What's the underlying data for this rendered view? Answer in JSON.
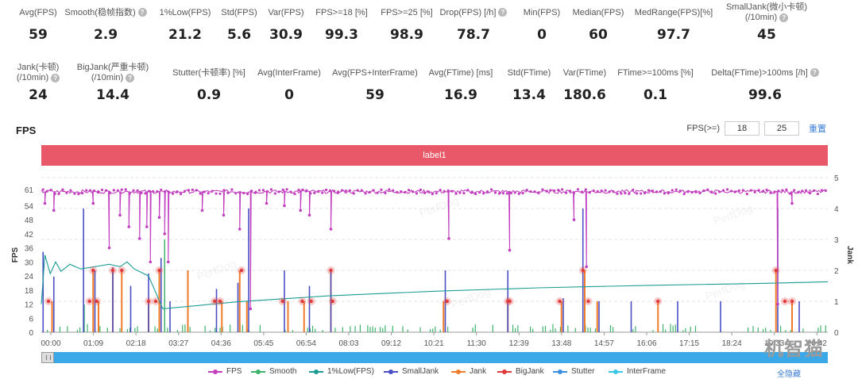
{
  "stats_row1": [
    {
      "label": "Avg(FPS)",
      "value": "59",
      "help": false
    },
    {
      "label": "Smooth(稳帧指数)",
      "value": "2.9",
      "help": true
    },
    {
      "label": "1%Low(FPS)",
      "value": "21.2",
      "help": false
    },
    {
      "label": "Std(FPS)",
      "value": "5.6",
      "help": false
    },
    {
      "label": "Var(FPS)",
      "value": "30.9",
      "help": false
    },
    {
      "label": "FPS>=18 [%]",
      "value": "99.3",
      "help": false
    },
    {
      "label": "FPS>=25 [%]",
      "value": "98.9",
      "help": false
    },
    {
      "label": "Drop(FPS) [/h]",
      "value": "78.7",
      "help": true
    },
    {
      "label": "Min(FPS)",
      "value": "0",
      "help": false
    },
    {
      "label": "Median(FPS)",
      "value": "60",
      "help": false
    },
    {
      "label": "MedRange(FPS)[%]",
      "value": "97.7",
      "help": false
    },
    {
      "label": "SmallJank(微小卡顿)",
      "label2": "(/10min)",
      "value": "45",
      "help": true
    }
  ],
  "stats_row2": [
    {
      "label": "Jank(卡顿)",
      "label2": "(/10min)",
      "value": "24",
      "help": true
    },
    {
      "label": "BigJank(严重卡顿)",
      "label2": "(/10min)",
      "value": "14.4",
      "help": true
    },
    {
      "label": "Stutter(卡顿率) [%]",
      "value": "0.9",
      "help": false
    },
    {
      "label": "Avg(InterFrame)",
      "value": "0",
      "help": false
    },
    {
      "label": "Avg(FPS+InterFrame)",
      "value": "59",
      "help": false
    },
    {
      "label": "Avg(FTime) [ms]",
      "value": "16.9",
      "help": false
    },
    {
      "label": "Std(FTime)",
      "value": "13.4",
      "help": false
    },
    {
      "label": "Var(FTime)",
      "value": "180.6",
      "help": false
    },
    {
      "label": "FTime>=100ms [%]",
      "value": "0.1",
      "help": false
    },
    {
      "label": "Delta(FTime)>100ms [/h]",
      "value": "99.6",
      "help": true
    }
  ],
  "chart_title": "FPS",
  "threshold_label": "FPS(>=)",
  "threshold_values": [
    "18",
    "25"
  ],
  "reset_label": "重置",
  "label_bar": "label1",
  "hide_all_label": "全隐藏",
  "watermark_text": "PerfDog",
  "logo_text": "机智猫",
  "colors": {
    "fps": "#c23fc0",
    "smooth": "#3fb36b",
    "low1": "#1a9c95",
    "smalljank": "#4a4fc4",
    "jank": "#f07c2a",
    "bigjank": "#e03b3b",
    "stutter": "#3c8ee0",
    "interframe": "#39c8e8",
    "label_bar": "#e85868",
    "slider": "#3ba8e8"
  },
  "chart_data": {
    "type": "line",
    "x_ticks": [
      "00:00",
      "01:09",
      "02:18",
      "03:27",
      "04:36",
      "05:45",
      "06:54",
      "08:03",
      "09:12",
      "10:21",
      "11:30",
      "12:39",
      "13:48",
      "14:57",
      "16:06",
      "17:15",
      "18:24",
      "19:33",
      "20:42"
    ],
    "y_left_label": "FPS",
    "y_left_ticks": [
      0,
      6,
      12,
      18,
      24,
      30,
      36,
      42,
      48,
      54,
      61
    ],
    "y_left_range": [
      0,
      66
    ],
    "y_right_label": "Jank",
    "y_right_ticks": [
      0,
      1,
      2,
      3,
      4,
      5
    ],
    "y_right_range": [
      0,
      5
    ],
    "duration_minutes": 22,
    "series": [
      {
        "name": "FPS",
        "key": "fps",
        "baseline": 60,
        "dips": [
          [
            0.1,
            55
          ],
          [
            0.35,
            52
          ],
          [
            1.45,
            55
          ],
          [
            1.9,
            36
          ],
          [
            2.2,
            50
          ],
          [
            2.45,
            45
          ],
          [
            2.75,
            40
          ],
          [
            2.95,
            45
          ],
          [
            3.05,
            30
          ],
          [
            3.3,
            49
          ],
          [
            3.45,
            42
          ],
          [
            3.55,
            30
          ],
          [
            4.5,
            52
          ],
          [
            5.1,
            50
          ],
          [
            5.55,
            44
          ],
          [
            5.85,
            10
          ],
          [
            6.3,
            55
          ],
          [
            6.8,
            54
          ],
          [
            7.25,
            52
          ],
          [
            7.5,
            50
          ],
          [
            8.1,
            44
          ],
          [
            11.4,
            40
          ],
          [
            13.1,
            35
          ],
          [
            14.9,
            48
          ],
          [
            15.25,
            28
          ],
          [
            20.6,
            12
          ],
          [
            21.0,
            55
          ]
        ]
      },
      {
        "name": "Smooth",
        "key": "smooth"
      },
      {
        "name": "1%Low(FPS)",
        "key": "low1",
        "points": [
          [
            0,
            12
          ],
          [
            0.1,
            33
          ],
          [
            0.25,
            25
          ],
          [
            0.4,
            30
          ],
          [
            0.55,
            26
          ],
          [
            0.8,
            29
          ],
          [
            1.1,
            27
          ],
          [
            1.5,
            28
          ],
          [
            1.9,
            29
          ],
          [
            2.2,
            28
          ],
          [
            2.4,
            30
          ],
          [
            2.6,
            27
          ],
          [
            3.0,
            24
          ],
          [
            3.4,
            10
          ],
          [
            5.5,
            13
          ],
          [
            8.0,
            15.5
          ],
          [
            11,
            17.5
          ],
          [
            14,
            19
          ],
          [
            17,
            20
          ],
          [
            20,
            20.8
          ],
          [
            22,
            21.5
          ]
        ]
      },
      {
        "name": "SmallJank",
        "key": "smalljank",
        "spikes": [
          [
            0.05,
            2.6
          ],
          [
            0.35,
            1.8
          ],
          [
            1.18,
            4.0
          ],
          [
            1.5,
            2.0
          ],
          [
            2.0,
            2.1
          ],
          [
            2.5,
            1.5
          ],
          [
            3.0,
            1.9
          ],
          [
            3.35,
            2.4
          ],
          [
            3.6,
            1.0
          ],
          [
            4.9,
            1.4
          ],
          [
            5.5,
            1.6
          ],
          [
            5.8,
            4.0
          ],
          [
            6.8,
            2.0
          ],
          [
            7.5,
            1.5
          ],
          [
            8.1,
            2.0
          ],
          [
            11.3,
            2.0
          ],
          [
            13.05,
            2.0
          ],
          [
            14.6,
            1.1
          ],
          [
            15.15,
            4.0
          ],
          [
            15.6,
            1.0
          ],
          [
            16.5,
            1.0
          ],
          [
            17.8,
            1.0
          ],
          [
            19.0,
            1.0
          ],
          [
            20.6,
            4.0
          ],
          [
            21.2,
            1.0
          ]
        ]
      },
      {
        "name": "Jank",
        "key": "jank",
        "spikes": [
          [
            0.3,
            1.0
          ],
          [
            1.45,
            2.0
          ],
          [
            1.6,
            1.0
          ],
          [
            2.0,
            2.0
          ],
          [
            2.25,
            2.0
          ],
          [
            3.0,
            1.0
          ],
          [
            3.3,
            2.0
          ],
          [
            4.1,
            2.0
          ],
          [
            5.05,
            1.0
          ],
          [
            5.55,
            2.0
          ],
          [
            5.75,
            1.0
          ],
          [
            6.9,
            1.0
          ],
          [
            7.35,
            1.0
          ],
          [
            8.1,
            2.0
          ],
          [
            11.25,
            1.0
          ],
          [
            13.05,
            1.0
          ],
          [
            14.55,
            1.0
          ],
          [
            15.2,
            2.0
          ],
          [
            15.55,
            1.0
          ],
          [
            17.25,
            1.0
          ],
          [
            20.55,
            2.0
          ],
          [
            21.0,
            1.0
          ]
        ]
      },
      {
        "name": "BigJank",
        "key": "bigjank",
        "points": [
          [
            0.2,
            1
          ],
          [
            1.35,
            1
          ],
          [
            1.55,
            1
          ],
          [
            1.45,
            2
          ],
          [
            2.0,
            2
          ],
          [
            2.25,
            2
          ],
          [
            3.0,
            1
          ],
          [
            3.2,
            1
          ],
          [
            3.3,
            2
          ],
          [
            4.85,
            1
          ],
          [
            5.0,
            1
          ],
          [
            5.6,
            2
          ],
          [
            6.75,
            1
          ],
          [
            7.3,
            1
          ],
          [
            7.55,
            1
          ],
          [
            8.1,
            2
          ],
          [
            8.15,
            1
          ],
          [
            11.35,
            1
          ],
          [
            13.05,
            1
          ],
          [
            13.1,
            1
          ],
          [
            14.5,
            1
          ],
          [
            15.15,
            2
          ],
          [
            15.3,
            1
          ],
          [
            17.25,
            1
          ],
          [
            20.55,
            2
          ],
          [
            20.8,
            1
          ],
          [
            21.0,
            1
          ]
        ]
      },
      {
        "name": "Stutter",
        "key": "stutter"
      },
      {
        "name": "InterFrame",
        "key": "interframe"
      }
    ]
  }
}
